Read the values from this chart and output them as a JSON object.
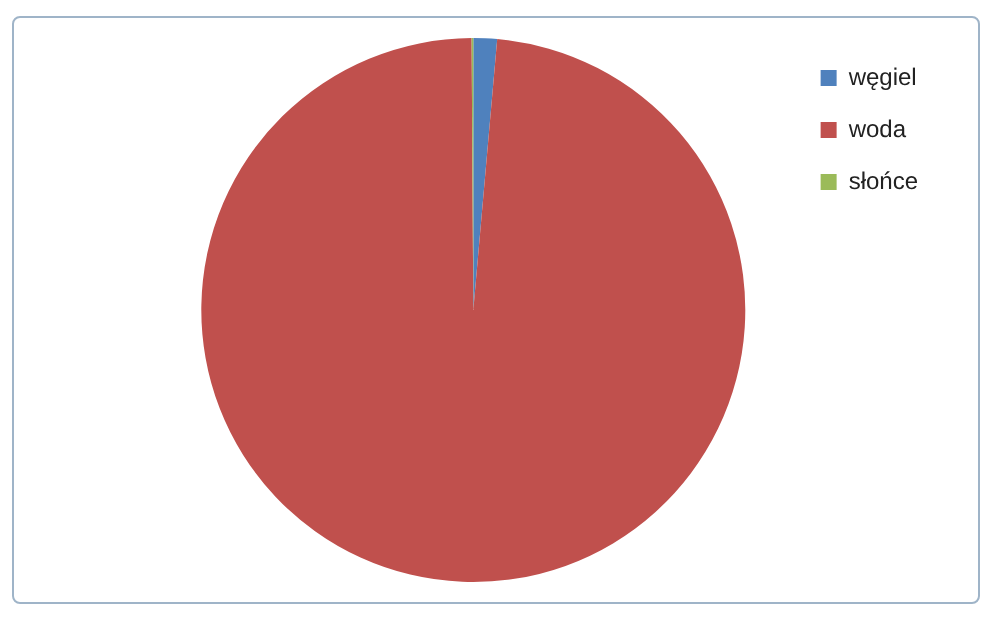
{
  "chart_data": {
    "type": "pie",
    "categories": [
      "węgiel",
      "woda",
      "słońce"
    ],
    "values": [
      1.4,
      98.5,
      0.1
    ],
    "colors": [
      "#4f81bd",
      "#c0504d",
      "#9bbb59"
    ],
    "legend": "top right"
  }
}
